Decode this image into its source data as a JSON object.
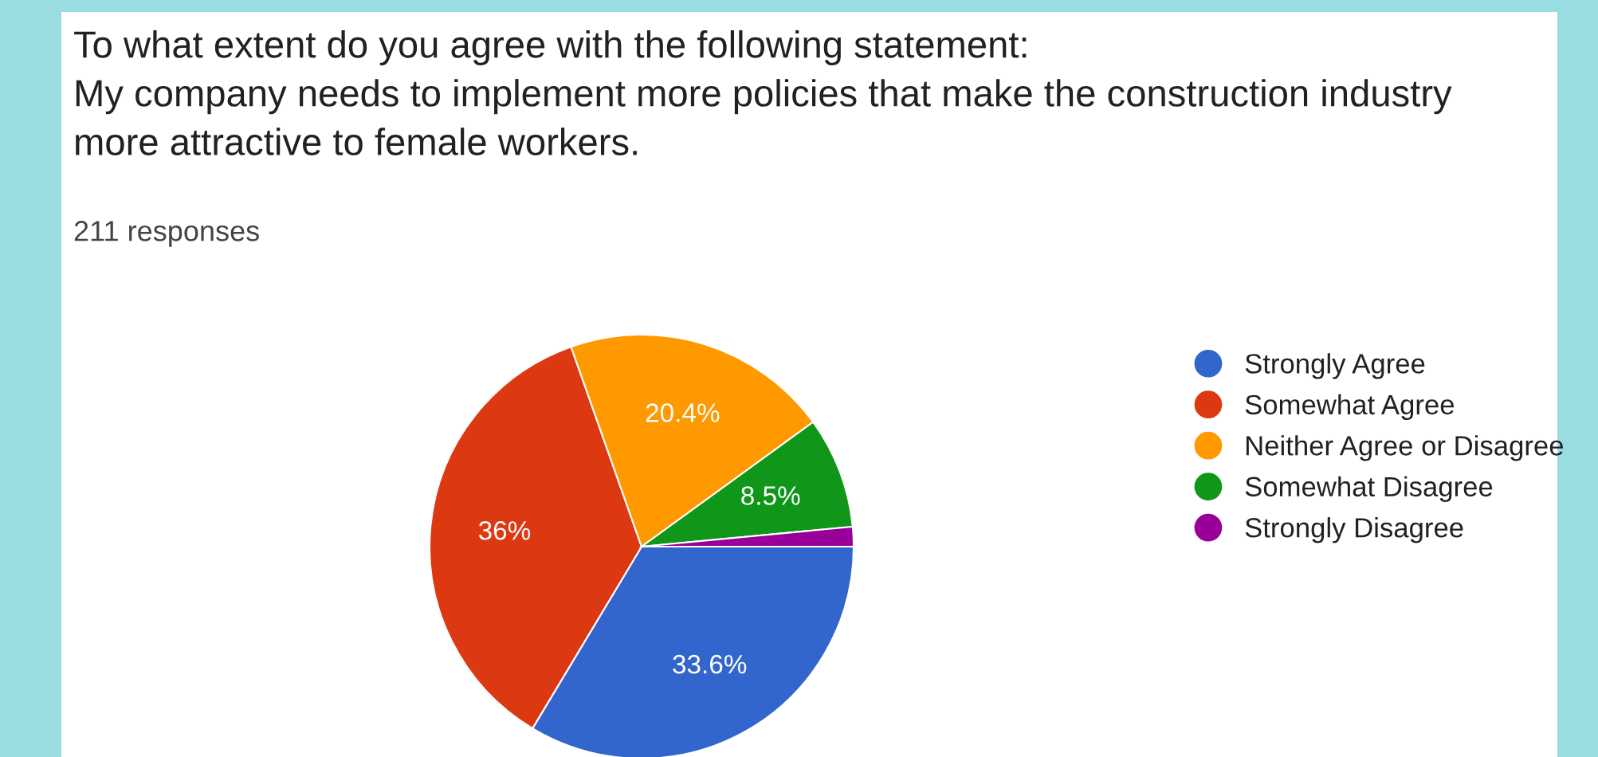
{
  "chart_data": {
    "type": "pie",
    "title": "To what extent do you agree with the following statement:\nMy company needs to implement more policies that make the construction industry\nmore attractive to female workers.",
    "subtitle": "211 responses",
    "categories": [
      "Strongly Agree",
      "Somewhat Agree",
      "Neither Agree or Disagree",
      "Somewhat Disagree",
      "Strongly Disagree"
    ],
    "values": [
      33.6,
      36,
      20.4,
      8.5,
      1.5
    ],
    "value_labels": [
      "33.6%",
      "36%",
      "20.4%",
      "8.5%",
      null
    ],
    "colors": [
      "#3366cc",
      "#dc3912",
      "#ff9900",
      "#109618",
      "#990099"
    ],
    "legend": "right"
  }
}
